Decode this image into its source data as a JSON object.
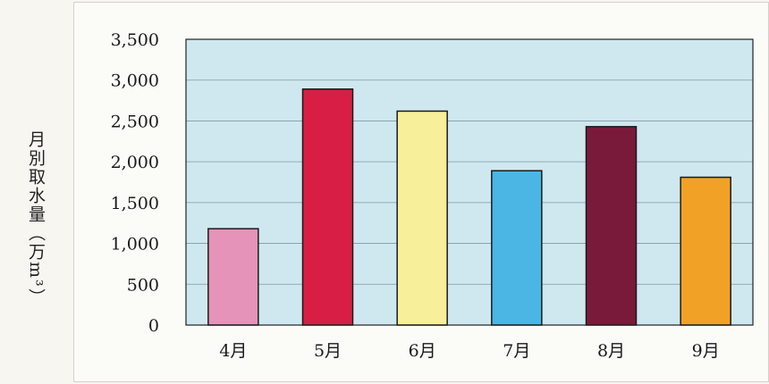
{
  "chart_data": {
    "type": "bar",
    "ylabel": "月別取水量（万m³）",
    "categories": [
      "4月",
      "5月",
      "6月",
      "7月",
      "8月",
      "9月"
    ],
    "values": [
      1180,
      2890,
      2620,
      1890,
      2430,
      1810
    ],
    "ylim": [
      0,
      3500
    ],
    "yticks": [
      0,
      500,
      1000,
      1500,
      2000,
      2500,
      3000,
      3500
    ],
    "ytick_labels": [
      "0",
      "500",
      "1,000",
      "1,500",
      "2,000",
      "2,500",
      "3,000",
      "3,500"
    ],
    "grid": true,
    "legend": "none",
    "bar_colors": [
      "#e593b8",
      "#d81e44",
      "#f7ef9a",
      "#4bb6e4",
      "#7a1a3a",
      "#f1a226"
    ],
    "plot_background": "#cfe8f0"
  }
}
